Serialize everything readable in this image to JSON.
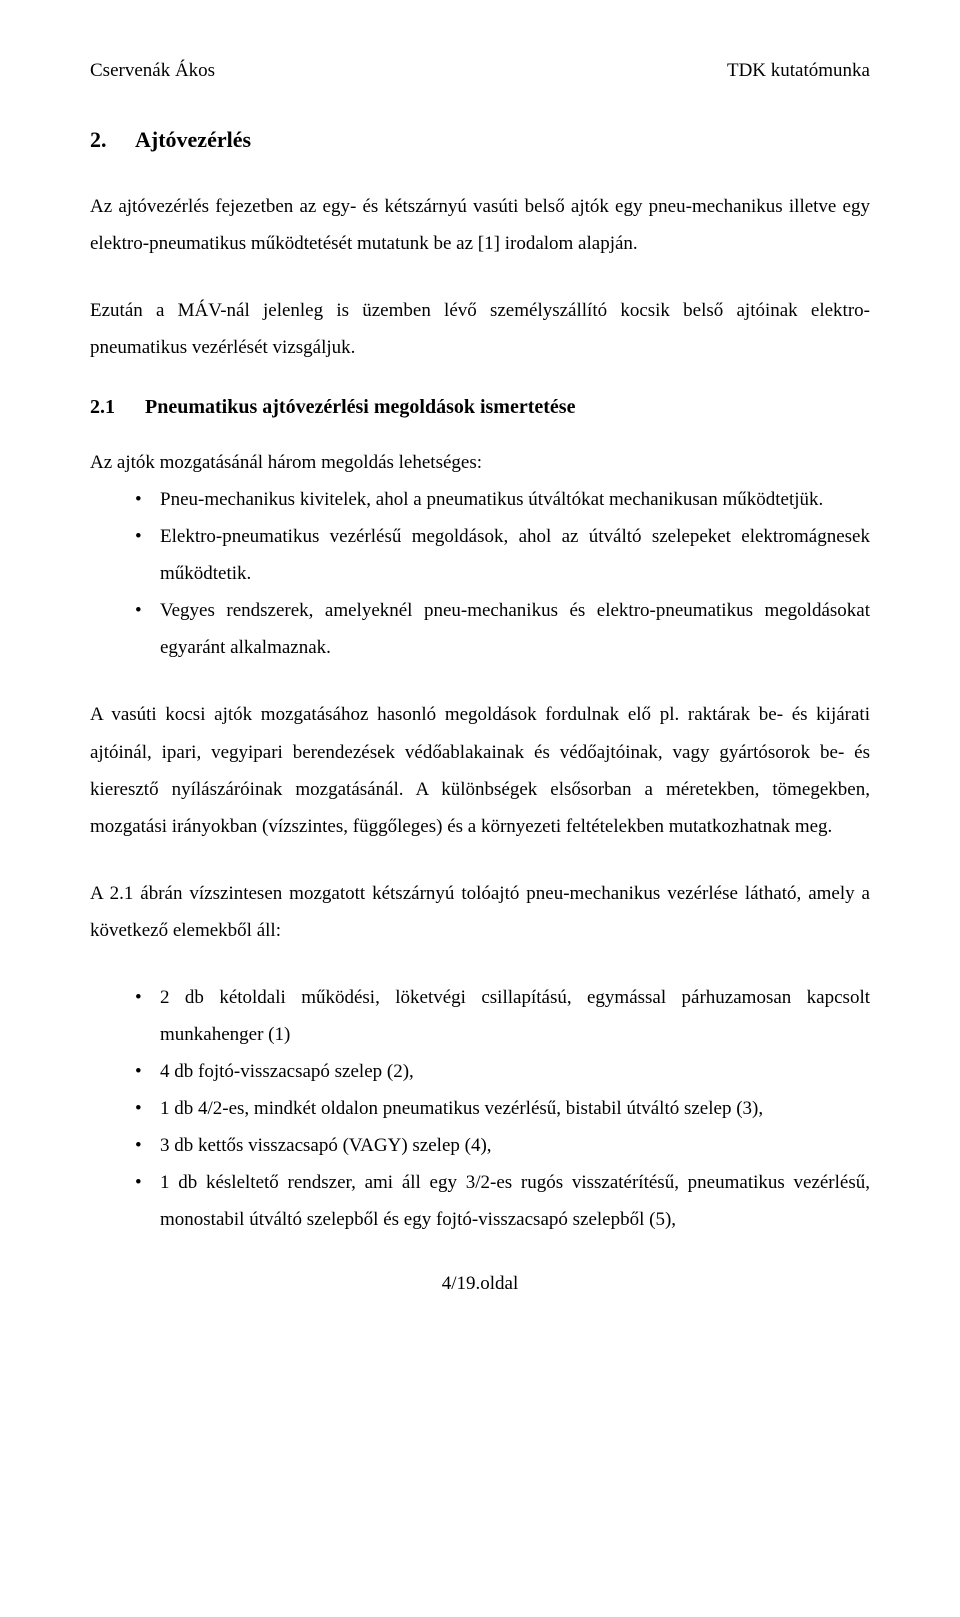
{
  "header": {
    "left": "Cservenák Ákos",
    "right": "TDK kutatómunka"
  },
  "h2": {
    "num": "2.",
    "title": "Ajtóvezérlés"
  },
  "para1": "Az ajtóvezérlés fejezetben az egy- és kétszárnyú vasúti belső ajtók egy pneu-mechanikus illetve egy elektro-pneumatikus működtetését mutatunk be az [1] irodalom alapján.",
  "para2": "Ezután a MÁV-nál jelenleg is üzemben lévő személyszállító kocsik belső ajtóinak elektro-pneumatikus vezérlését vizsgáljuk.",
  "h3": {
    "num": "2.1",
    "title": "Pneumatikus ajtóvezérlési megoldások ismertetése"
  },
  "list1_intro": "Az ajtók mozgatásánál három megoldás lehetséges:",
  "list1": {
    "i0": "Pneu-mechanikus kivitelek, ahol a pneumatikus útváltókat mechanikusan működtetjük.",
    "i1": "Elektro-pneumatikus vezérlésű megoldások, ahol az útváltó szelepeket elektromágnesek működtetik.",
    "i2": "Vegyes rendszerek, amelyeknél pneu-mechanikus és elektro-pneumatikus megoldásokat egyaránt alkalmaznak."
  },
  "para3": "A vasúti kocsi ajtók mozgatásához hasonló megoldások fordulnak elő pl. raktárak be- és kijárati ajtóinál, ipari, vegyipari berendezések védőablakainak és védőajtóinak, vagy gyártósorok be- és kieresztő nyílászáróinak mozgatásánál. A különbségek elsősorban a méretekben, tömegekben, mozgatási irányokban (vízszintes, függőleges) és a környezeti feltételekben mutatkozhatnak meg.",
  "para4": "A 2.1 ábrán vízszintesen mozgatott kétszárnyú tolóajtó pneu-mechanikus vezérlése látható, amely a következő elemekből áll:",
  "list2": {
    "i0": "2 db kétoldali működési, löketvégi csillapítású, egymással párhuzamosan kapcsolt munkahenger (1)",
    "i1": "4 db fojtó-visszacsapó szelep (2),",
    "i2": "1 db 4/2-es, mindkét oldalon pneumatikus vezérlésű, bistabil útváltó szelep (3),",
    "i3": "3 db kettős visszacsapó (VAGY) szelep (4),",
    "i4": "1 db késleltető rendszer, ami áll egy 3/2-es rugós visszatérítésű, pneumatikus vezérlésű, monostabil útváltó szelepből és egy fojtó-visszacsapó szelepből (5),"
  },
  "footer": "4/19.oldal"
}
